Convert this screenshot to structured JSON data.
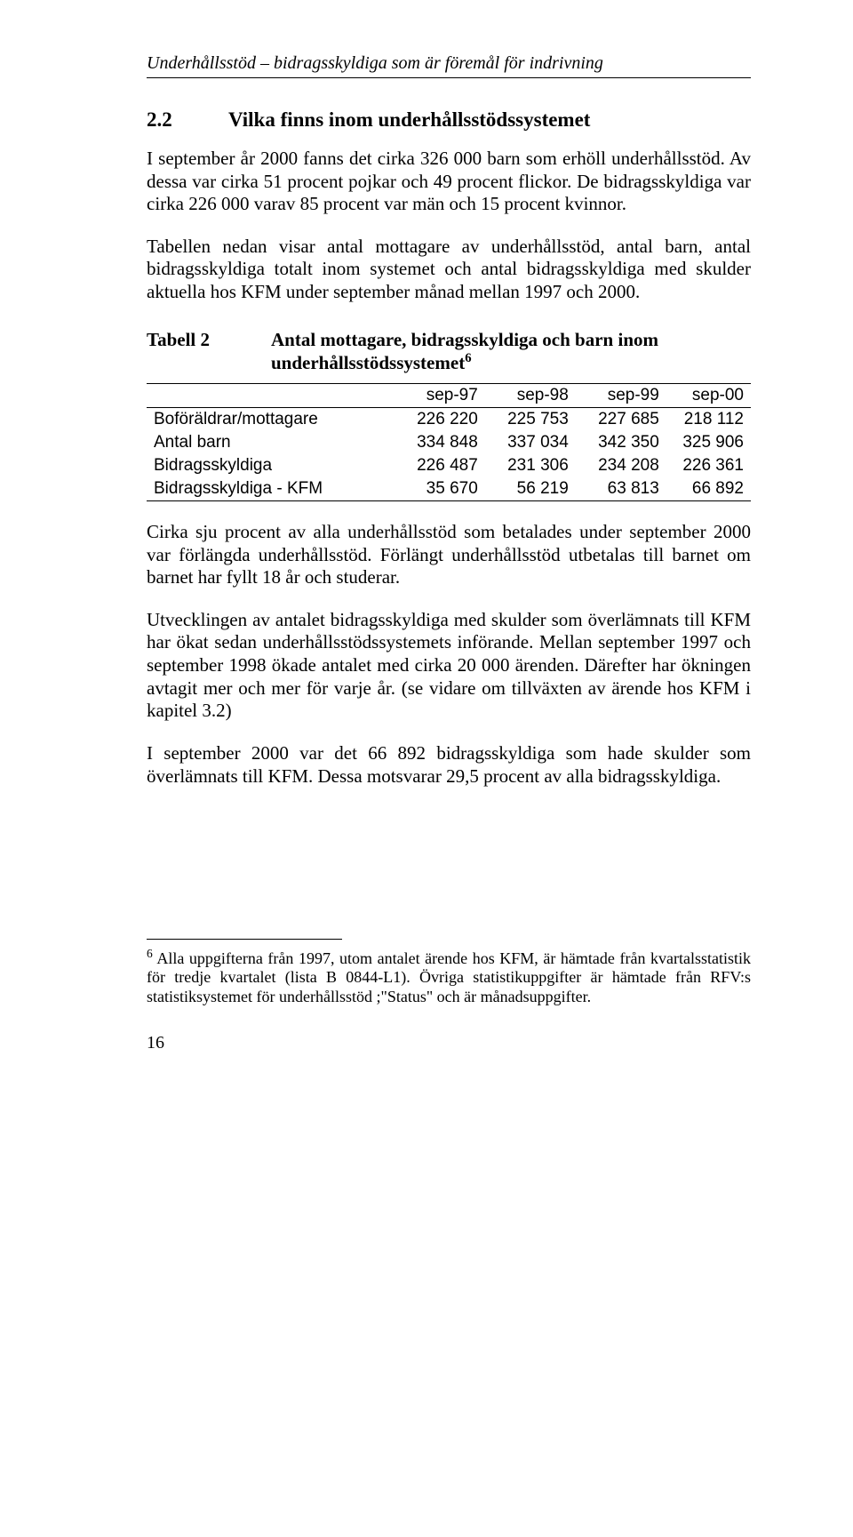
{
  "running_header": "Underhållsstöd – bidragsskyldiga som är föremål för indrivning",
  "section": {
    "number": "2.2",
    "title": "Vilka finns inom underhållsstödssystemet"
  },
  "para1": "I september år 2000 fanns det cirka 326 000 barn som erhöll underhållsstöd. Av dessa var cirka 51 procent pojkar och 49 procent flickor. De bidragsskyldiga var cirka 226 000 varav 85 procent var män och 15 procent kvinnor.",
  "para2": "Tabellen nedan visar antal mottagare av underhållsstöd, antal barn, antal bidragsskyldiga totalt inom systemet och antal bidragsskyldiga med skulder aktuella hos KFM under september månad mellan 1997 och 2000.",
  "table": {
    "label": "Tabell 2",
    "caption": "Antal mottagare, bidragsskyldiga och barn inom underhållsstödssystemet",
    "caption_sup": "6",
    "columns": [
      "",
      "sep-97",
      "sep-98",
      "sep-99",
      "sep-00"
    ],
    "col_widths": [
      "41%",
      "15%",
      "15%",
      "15%",
      "14%"
    ],
    "rows": [
      [
        "Boföräldrar/mottagare",
        "226 220",
        "225 753",
        "227 685",
        "218 112"
      ],
      [
        "Antal barn",
        "334 848",
        "337 034",
        "342 350",
        "325 906"
      ],
      [
        "Bidragsskyldiga",
        "226 487",
        "231 306",
        "234 208",
        "226 361"
      ],
      [
        "Bidragsskyldiga - KFM",
        "35 670",
        "56 219",
        "63 813",
        "66 892"
      ]
    ]
  },
  "para3": "Cirka sju procent av alla underhållsstöd som betalades under september 2000 var förlängda underhållsstöd. Förlängt underhållsstöd utbetalas till barnet om barnet har fyllt 18 år och studerar.",
  "para4": "Utvecklingen av antalet bidragsskyldiga med skulder som överlämnats till KFM har ökat sedan underhållsstödssystemets införande. Mellan september 1997 och september 1998 ökade antalet med cirka 20 000 ärenden. Därefter har ökningen avtagit mer och mer för varje år. (se vidare om tillväxten av ärende hos KFM i kapitel 3.2)",
  "para5": "I september 2000 var det 66 892 bidragsskyldiga som hade skulder som överlämnats till KFM. Dessa motsvarar 29,5 procent av alla bidragsskyldiga.",
  "footnote": {
    "marker": "6",
    "text": " Alla uppgifterna från 1997, utom antalet ärende hos KFM, är hämtade från kvartalsstatistik för tredje kvartalet (lista B 0844-L1). Övriga statistikuppgifter är hämtade från RFV:s statistiksystemet för underhållsstöd ;\"Status\" och är månadsuppgifter."
  },
  "page_number": "16"
}
